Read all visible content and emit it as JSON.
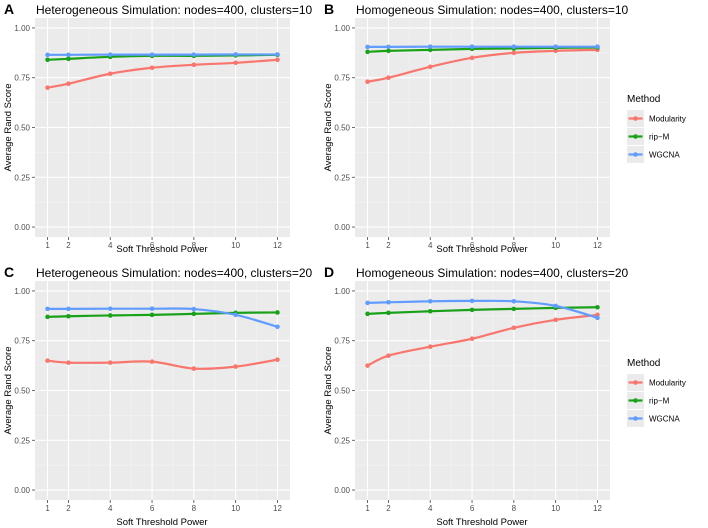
{
  "legends": [
    {
      "title": "Method",
      "items": [
        {
          "label": "Modularity",
          "color": "#f8766d"
        },
        {
          "label": "rip−M",
          "color": "#1aa11a"
        },
        {
          "label": "WGCNA",
          "color": "#619cff"
        }
      ]
    },
    {
      "title": "Method",
      "items": [
        {
          "label": "Modularity",
          "color": "#f8766d"
        },
        {
          "label": "rip−M",
          "color": "#1aa11a"
        },
        {
          "label": "WGCNA",
          "color": "#619cff"
        }
      ]
    }
  ],
  "chart_data": [
    {
      "panel": "A",
      "type": "line",
      "title": "Heterogeneous Simulation: nodes=400, clusters=10",
      "xlabel": "Soft Threshold Power",
      "ylabel": "Average Rand Score",
      "x": [
        1,
        2,
        4,
        6,
        8,
        10,
        12
      ],
      "xticks": [
        1,
        2,
        4,
        6,
        8,
        10,
        12
      ],
      "yticks": [
        "0.00",
        "0.25",
        "0.50",
        "0.75",
        "1.00"
      ],
      "ylim": [
        0,
        1
      ],
      "series": [
        {
          "name": "Modularity",
          "color": "#f8766d",
          "values": [
            0.7,
            0.72,
            0.77,
            0.8,
            0.815,
            0.825,
            0.84
          ]
        },
        {
          "name": "rip−M",
          "color": "#1aa11a",
          "values": [
            0.84,
            0.845,
            0.855,
            0.86,
            0.86,
            0.862,
            0.865
          ]
        },
        {
          "name": "WGCNA",
          "color": "#619cff",
          "values": [
            0.865,
            0.865,
            0.866,
            0.866,
            0.866,
            0.867,
            0.867
          ]
        }
      ]
    },
    {
      "panel": "B",
      "type": "line",
      "title": "Homogeneous Simulation: nodes=400, clusters=10",
      "xlabel": "Soft Threshold Power",
      "ylabel": "Average Rand Score",
      "x": [
        1,
        2,
        4,
        6,
        8,
        10,
        12
      ],
      "xticks": [
        1,
        2,
        4,
        6,
        8,
        10,
        12
      ],
      "yticks": [
        "0.00",
        "0.25",
        "0.50",
        "0.75",
        "1.00"
      ],
      "ylim": [
        0,
        1
      ],
      "series": [
        {
          "name": "Modularity",
          "color": "#f8766d",
          "values": [
            0.73,
            0.75,
            0.805,
            0.85,
            0.875,
            0.885,
            0.89
          ]
        },
        {
          "name": "rip−M",
          "color": "#1aa11a",
          "values": [
            0.88,
            0.885,
            0.89,
            0.895,
            0.897,
            0.9,
            0.902
          ]
        },
        {
          "name": "WGCNA",
          "color": "#619cff",
          "values": [
            0.905,
            0.905,
            0.906,
            0.906,
            0.906,
            0.906,
            0.906
          ]
        }
      ]
    },
    {
      "panel": "C",
      "type": "line",
      "title": "Heterogeneous Simulation: nodes=400, clusters=20",
      "xlabel": "Soft Threshold Power",
      "ylabel": "Average Rand Score",
      "x": [
        1,
        2,
        4,
        6,
        8,
        10,
        12
      ],
      "xticks": [
        1,
        2,
        4,
        6,
        8,
        10,
        12
      ],
      "yticks": [
        "0.00",
        "0.25",
        "0.50",
        "0.75",
        "1.00"
      ],
      "ylim": [
        0,
        1
      ],
      "series": [
        {
          "name": "Modularity",
          "color": "#f8766d",
          "values": [
            0.65,
            0.64,
            0.64,
            0.645,
            0.61,
            0.62,
            0.655
          ]
        },
        {
          "name": "rip−M",
          "color": "#1aa11a",
          "values": [
            0.87,
            0.873,
            0.877,
            0.88,
            0.885,
            0.89,
            0.892
          ]
        },
        {
          "name": "WGCNA",
          "color": "#619cff",
          "values": [
            0.91,
            0.91,
            0.911,
            0.911,
            0.909,
            0.88,
            0.82
          ]
        }
      ]
    },
    {
      "panel": "D",
      "type": "line",
      "title": "Homogeneous Simulation: nodes=400, clusters=20",
      "xlabel": "Soft Threshold Power",
      "ylabel": "Average Rand Score",
      "x": [
        1,
        2,
        4,
        6,
        8,
        10,
        12
      ],
      "xticks": [
        1,
        2,
        4,
        6,
        8,
        10,
        12
      ],
      "yticks": [
        "0.00",
        "0.25",
        "0.50",
        "0.75",
        "1.00"
      ],
      "ylim": [
        0,
        1
      ],
      "series": [
        {
          "name": "Modularity",
          "color": "#f8766d",
          "values": [
            0.625,
            0.675,
            0.72,
            0.76,
            0.815,
            0.855,
            0.88
          ]
        },
        {
          "name": "rip−M",
          "color": "#1aa11a",
          "values": [
            0.885,
            0.89,
            0.898,
            0.905,
            0.91,
            0.915,
            0.918
          ]
        },
        {
          "name": "WGCNA",
          "color": "#619cff",
          "values": [
            0.94,
            0.943,
            0.948,
            0.95,
            0.948,
            0.925,
            0.865
          ]
        }
      ]
    }
  ]
}
